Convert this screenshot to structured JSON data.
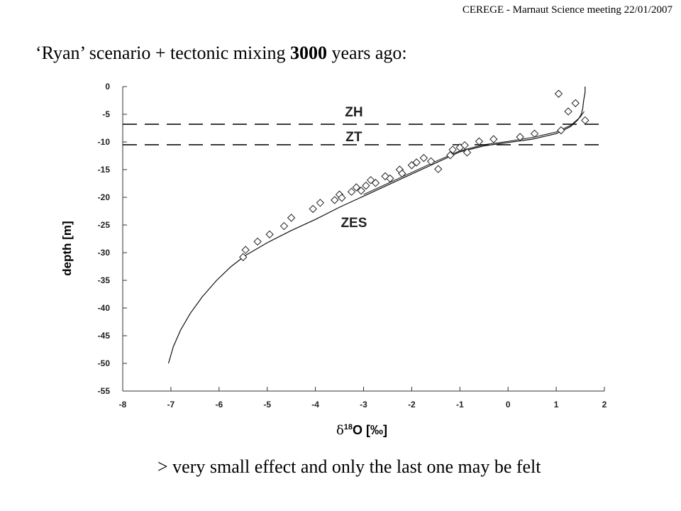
{
  "header": {
    "text": "CEREGE - Marnaut Science meeting 22/01/2007"
  },
  "title": {
    "part1": "‘Ryan’ scenario + tectonic mixing ",
    "bold": "3000",
    "part2": " years ago:"
  },
  "footer": {
    "text": "> very small effect and only the last one may be felt"
  },
  "chart_data": {
    "type": "scatter",
    "xlabel_prefix": "δ",
    "xlabel_sup": "18",
    "xlabel_main": "O  [‰]",
    "ylabel": "depth  [m]",
    "xlim": [
      -8,
      2
    ],
    "ylim": [
      -55,
      0
    ],
    "xticks": [
      -8,
      -7,
      -6,
      -5,
      -4,
      -3,
      -2,
      -1,
      0,
      1,
      2
    ],
    "yticks": [
      0,
      -5,
      -10,
      -15,
      -20,
      -25,
      -30,
      -35,
      -40,
      -45,
      -50,
      -55
    ],
    "grid": false,
    "zones": [
      {
        "label": "ZH",
        "x": -3.2,
        "y": -4.5
      },
      {
        "label": "ZT",
        "x": -3.2,
        "y": -9.0
      },
      {
        "label": "ZES",
        "x": -3.2,
        "y": -24.5
      }
    ],
    "dashed_lines_depth": [
      -6.8,
      -10.5
    ],
    "series": [
      {
        "kind": "line",
        "x": [
          -7.05,
          -6.95,
          -6.8,
          -6.6,
          -6.35,
          -6.05,
          -5.75,
          -5.45,
          -5.0,
          -4.5,
          -4.0,
          -3.5,
          -3.0,
          -2.5,
          -2.0,
          -1.5,
          -1.0,
          -0.5,
          0.0,
          0.5,
          1.0,
          1.3,
          1.45,
          1.52,
          1.55,
          1.57,
          1.6,
          1.6
        ],
        "y": [
          -50,
          -47,
          -44,
          -41,
          -38,
          -35,
          -32.5,
          -30.5,
          -28.2,
          -26.0,
          -24.0,
          -21.8,
          -19.8,
          -17.8,
          -15.8,
          -13.8,
          -11.8,
          -10.7,
          -10.1,
          -9.5,
          -8.5,
          -7.2,
          -6.0,
          -5.0,
          -4.0,
          -2.5,
          -1.0,
          0.0
        ]
      },
      {
        "kind": "line",
        "x": [
          -3.0,
          -2.5,
          -2.0,
          -1.5,
          -1.0,
          -0.5,
          0.0,
          0.5,
          1.0,
          1.3,
          1.5,
          1.58
        ],
        "y": [
          -19.5,
          -17.5,
          -15.5,
          -13.5,
          -11.6,
          -10.5,
          -9.9,
          -9.2,
          -8.2,
          -7.0,
          -5.5,
          -4.5
        ]
      },
      {
        "kind": "points",
        "x": [
          -5.45,
          -5.5,
          -5.2,
          -4.95,
          -4.65,
          -4.5,
          -4.05,
          -3.9,
          -3.6,
          -3.5,
          -3.45,
          -3.25,
          -3.15,
          -3.05,
          -2.95,
          -2.85,
          -2.75,
          -2.55,
          -2.45,
          -2.25,
          -2.2,
          -2.0,
          -1.9,
          -1.75,
          -1.6,
          -1.45,
          -1.2,
          -1.15,
          -1.0,
          -0.9,
          -0.85,
          -0.6,
          -0.3,
          0.25,
          0.55,
          1.1,
          1.05,
          1.25,
          1.4,
          1.6
        ],
        "y": [
          -29.5,
          -30.8,
          -28.0,
          -26.7,
          -25.2,
          -23.7,
          -22.1,
          -21.0,
          -20.5,
          -19.5,
          -20.1,
          -19.0,
          -18.2,
          -18.8,
          -17.9,
          -16.9,
          -17.4,
          -16.2,
          -16.6,
          -15.0,
          -15.7,
          -14.2,
          -13.7,
          -12.9,
          -13.5,
          -14.9,
          -12.4,
          -11.4,
          -11.0,
          -10.6,
          -11.9,
          -9.9,
          -9.5,
          -9.1,
          -8.5,
          -7.9,
          -1.3,
          -4.5,
          -3.0,
          -6.1
        ]
      }
    ]
  }
}
